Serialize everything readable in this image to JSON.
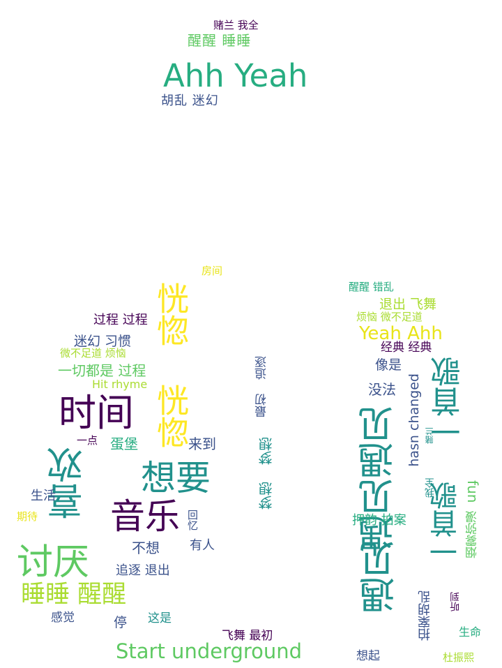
{
  "palette": {
    "purple": "#440154",
    "indigo": "#3b528b",
    "teal": "#21918c",
    "green": "#27ad81",
    "lime": "#5ec962",
    "yellow_green": "#aadc32",
    "yellow": "#e8e419",
    "gold": "#fde725"
  },
  "words": {
    "w01": "赌兰 我全",
    "w02": "醒醒 睡睡",
    "w03": "Ahh Yeah",
    "w04": "胡乱 迷幻",
    "w05": "房间",
    "w06": "恍惚 恍惚",
    "w07": "过程 过程",
    "w08": "迷幻 习惯",
    "w09": "微不足道 烦恼",
    "w10": "一切都是 过程",
    "w11": "Hit rhyme",
    "w12": "时间",
    "w13": "一点",
    "w14": "蛋堡",
    "w15": "来到",
    "w16": "喜欢",
    "w17": "想要",
    "w18": "生活",
    "w19": "期待",
    "w20": "音乐",
    "w21": "回忆",
    "w22": "不想",
    "w23": "有人",
    "w24": "讨厌",
    "w25": "追逐 退出",
    "w26": "睡睡 醒醒",
    "w27": "感觉",
    "w28": "停",
    "w29": "这是",
    "w30": "飞舞 最初",
    "w31": "Start underground",
    "w32": "最初 追逐",
    "w33": "梦想 梦想",
    "w34": "醒醒 错乱",
    "w35": "退出 飞舞",
    "w36": "烦恼 微不足道",
    "w37": "Yeah Ahh",
    "w38": "经典 经典",
    "w39": "像是",
    "w40": "一首歌",
    "w41": "没法",
    "w42": "hasn changed",
    "w43": "遇见遇见",
    "w44": "赌兰",
    "w45": "我全",
    "w46": "一首歌",
    "w47": "fun",
    "w48": "押韵 拍案",
    "w49": "烟雾弥漫",
    "w50": "遇见",
    "w51": "胡乱",
    "w52": "拍案",
    "w53": "听到",
    "w54": "生命",
    "w55": "想起",
    "w56": "杜振熙"
  }
}
